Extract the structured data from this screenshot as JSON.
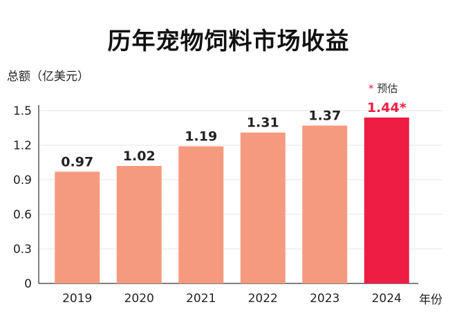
{
  "chart_data": {
    "type": "bar",
    "title": "历年宠物饲料市场收益",
    "ylabel": "总额（亿美元）",
    "xlabel": "年份",
    "categories": [
      "2019",
      "2020",
      "2021",
      "2022",
      "2023",
      "2024"
    ],
    "values": [
      0.97,
      1.02,
      1.19,
      1.31,
      1.37,
      1.44
    ],
    "value_labels": [
      "0.97",
      "1.02",
      "1.19",
      "1.31",
      "1.37",
      "1.44*"
    ],
    "estimated": [
      false,
      false,
      false,
      false,
      false,
      true
    ],
    "ylim": [
      0,
      1.5
    ],
    "yticks": [
      0,
      0.3,
      0.6,
      0.9,
      1.2,
      1.5
    ],
    "ytick_labels": [
      "0",
      "0.3",
      "0.6",
      "0.9",
      "1.2",
      "1.5"
    ],
    "grid": true,
    "note": {
      "star": "*",
      "text": "预估"
    },
    "colors": {
      "bar": "#f59a7f",
      "estimate_bar": "#ee1d44",
      "label": "#222222",
      "estimate_label": "#ee1d44",
      "grid": "#e6e6e6",
      "axis": "#555555"
    }
  }
}
